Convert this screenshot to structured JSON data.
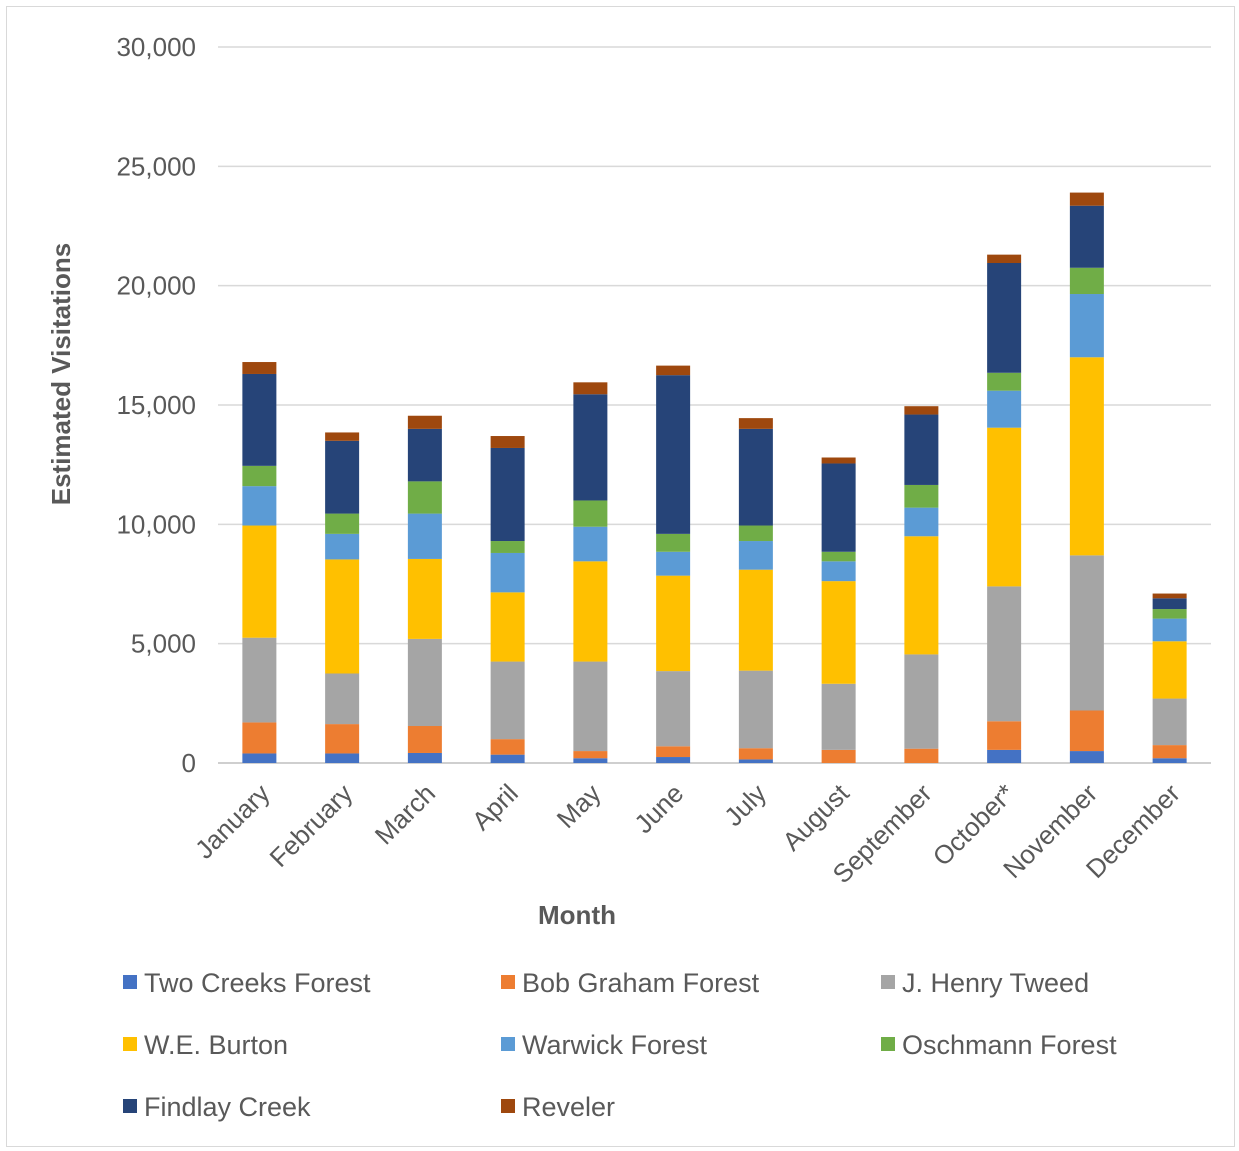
{
  "chart_data": {
    "type": "bar",
    "stacked": true,
    "title": "",
    "xlabel": "Month",
    "ylabel": "Estimated Visitations",
    "ylim": [
      0,
      30000
    ],
    "yticks": [
      0,
      5000,
      10000,
      15000,
      20000,
      25000,
      30000
    ],
    "ytick_labels": [
      "0",
      "5,000",
      "10,000",
      "15,000",
      "20,000",
      "25,000",
      "30,000"
    ],
    "grid": true,
    "legend_position": "bottom",
    "categories": [
      "January",
      "February",
      "March",
      "April",
      "May",
      "June",
      "July",
      "August",
      "September",
      "October*",
      "November",
      "December"
    ],
    "series": [
      {
        "name": "Two Creeks Forest",
        "color": "#4472C4",
        "values": [
          400,
          400,
          420,
          350,
          200,
          250,
          150,
          0,
          0,
          550,
          500,
          200
        ]
      },
      {
        "name": "Bob Graham Forest",
        "color": "#ED7D31",
        "values": [
          1300,
          1230,
          1130,
          650,
          300,
          450,
          470,
          550,
          600,
          1200,
          1700,
          550
        ]
      },
      {
        "name": "J. Henry Tweed",
        "color": "#A5A5A5",
        "values": [
          3550,
          2120,
          3650,
          3250,
          3750,
          3150,
          3250,
          2770,
          3950,
          5650,
          6500,
          1950
        ]
      },
      {
        "name": "W.E. Burton",
        "color": "#FFC000",
        "values": [
          4700,
          4780,
          3350,
          2900,
          4200,
          4000,
          4230,
          4300,
          4950,
          6650,
          8300,
          2400
        ]
      },
      {
        "name": "Warwick Forest",
        "color": "#5B9BD5",
        "values": [
          1650,
          1070,
          1900,
          1650,
          1450,
          1000,
          1200,
          830,
          1200,
          1550,
          2650,
          950
        ]
      },
      {
        "name": "Oschmann Forest",
        "color": "#70AD47",
        "values": [
          850,
          850,
          1350,
          500,
          1100,
          750,
          650,
          400,
          950,
          750,
          1100,
          400
        ]
      },
      {
        "name": "Findlay Creek",
        "color": "#264478",
        "values": [
          3850,
          3050,
          2200,
          3900,
          4450,
          6650,
          4050,
          3700,
          2950,
          4600,
          2600,
          450
        ]
      },
      {
        "name": "Reveler",
        "color": "#9E480E",
        "values": [
          500,
          350,
          550,
          500,
          500,
          400,
          450,
          250,
          350,
          350,
          550,
          200
        ]
      }
    ]
  }
}
